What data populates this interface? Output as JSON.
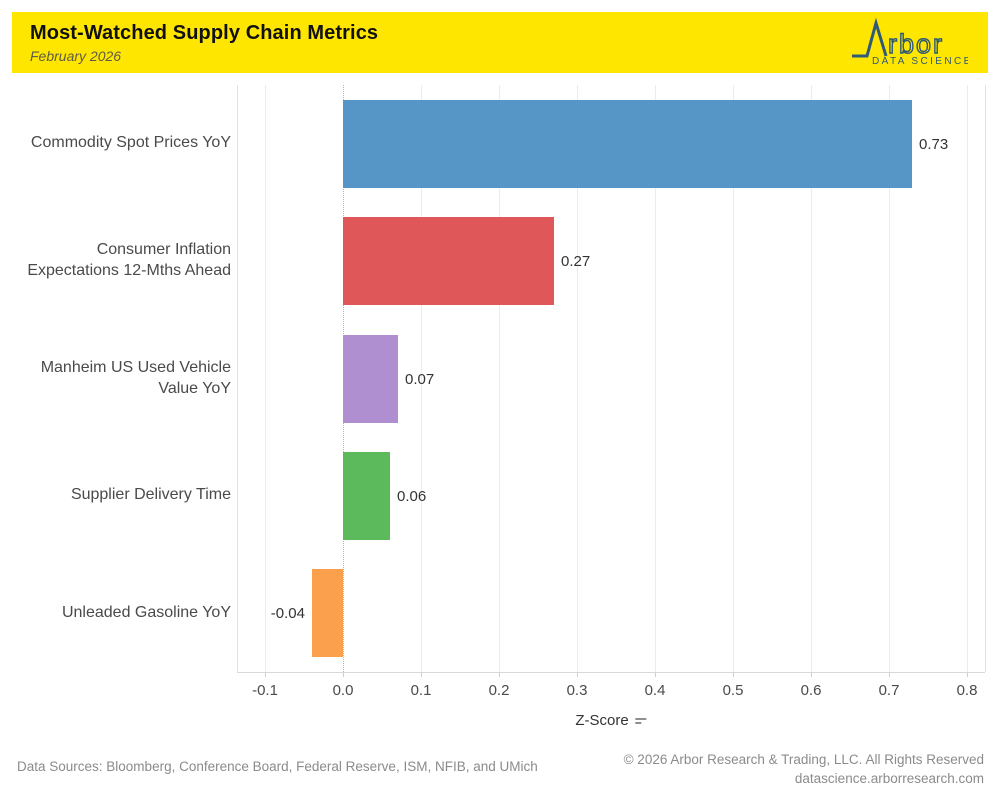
{
  "header": {
    "title": "Most-Watched Supply Chain Metrics",
    "subtitle": "February 2026",
    "banner_color": "#ffe600",
    "logo": {
      "name": "arbor-data-science",
      "wordmark": "rbor",
      "tagline": "DATA SCIENCE",
      "color": "#2e5977"
    }
  },
  "chart_data": {
    "type": "bar",
    "orientation": "horizontal",
    "title": "Most-Watched Supply Chain Metrics",
    "subtitle": "February 2026",
    "categories": [
      "Commodity Spot Prices YoY",
      "Consumer Inflation Expectations 12-Mths Ahead",
      "Manheim US Used Vehicle Value YoY",
      "Supplier Delivery Time",
      "Unleaded Gasoline YoY"
    ],
    "category_lines": [
      [
        "Commodity Spot Prices YoY"
      ],
      [
        "Consumer Inflation",
        "Expectations 12-Mths Ahead"
      ],
      [
        "Manheim US Used Vehicle",
        "Value YoY"
      ],
      [
        "Supplier Delivery Time"
      ],
      [
        "Unleaded Gasoline YoY"
      ]
    ],
    "values": [
      0.73,
      0.27,
      0.07,
      0.06,
      -0.04
    ],
    "value_labels": [
      "0.73",
      "0.27",
      "0.07",
      "0.06",
      "-0.04"
    ],
    "bar_colors": [
      "#5596c6",
      "#e05759",
      "#b08fd0",
      "#5cb95c",
      "#fba04c"
    ],
    "xlabel": "Z-Score",
    "x_ticks": [
      -0.1,
      0.0,
      0.1,
      0.2,
      0.3,
      0.4,
      0.5,
      0.6,
      0.7,
      0.8
    ],
    "x_tick_labels": [
      "-0.1",
      "0.0",
      "0.1",
      "0.2",
      "0.3",
      "0.4",
      "0.5",
      "0.6",
      "0.7",
      "0.8"
    ],
    "xlim": [
      -0.136,
      0.823
    ],
    "grid": "vertical-light-gray",
    "zero_line": "dotted",
    "legend": "none"
  },
  "footer": {
    "sources": "Data Sources: Bloomberg, Conference Board, Federal Reserve, ISM, NFIB, and UMich",
    "copyright": "© 2026 Arbor Research & Trading, LLC. All Rights Reserved",
    "website": "datascience.arborresearch.com"
  }
}
